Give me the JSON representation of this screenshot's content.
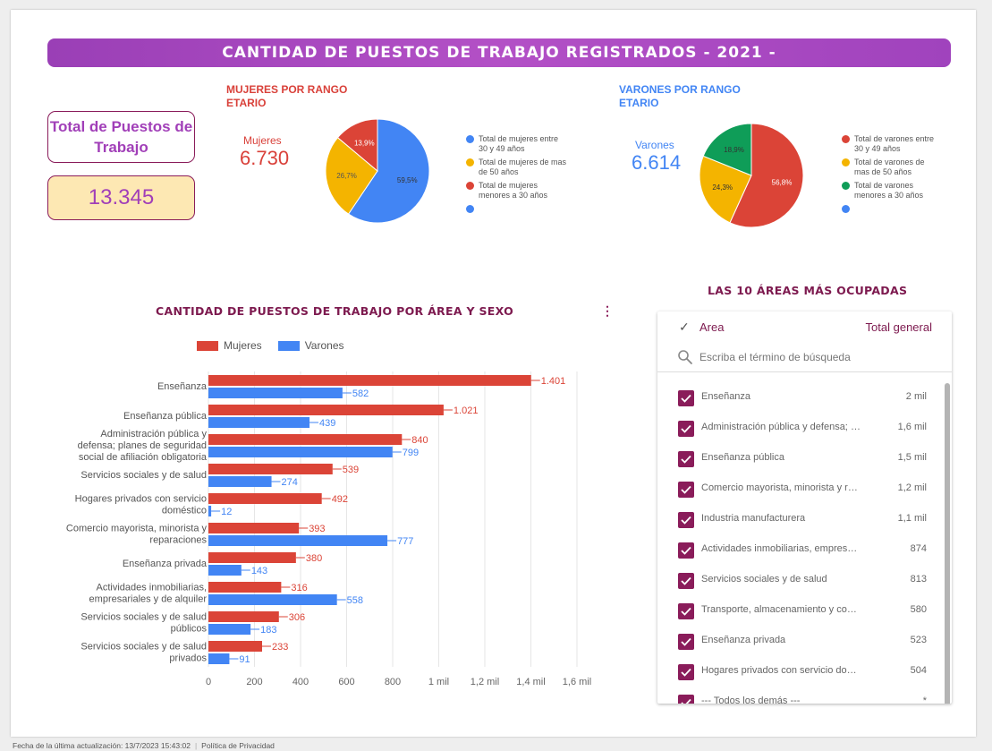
{
  "title": "CANTIDAD DE PUESTOS DE TRABAJO REGISTRADOS  - 2021 -",
  "total": {
    "label": "Total de Puestos de Trabajo",
    "value": "13.345"
  },
  "women": {
    "title": "MUJERES POR RANGO ETARIO",
    "scorecard_label": "Mujeres",
    "scorecard_value": "6.730",
    "legend": [
      "Total de mujeres entre 30 y 49 años",
      "Total de mujeres de mas de 50 años",
      "Total de mujeres menores a 30 años",
      ""
    ],
    "slice_labels": [
      "59,5%",
      "26,7%",
      "13,9%"
    ]
  },
  "men": {
    "title": "VARONES POR RANGO ETARIO",
    "scorecard_label": "Varones",
    "scorecard_value": "6.614",
    "legend": [
      "Total de varones entre 30 y 49 años",
      "Total de varones de mas de 50 años",
      "Total de varones menores a 30 años",
      ""
    ],
    "slice_labels": [
      "56,8%",
      "24,3%",
      "18,9%"
    ]
  },
  "colors": {
    "red": "#db4437",
    "blue": "#4285f4",
    "yellow": "#f4b400",
    "green": "#0f9d58",
    "purple": "#8a1c5a"
  },
  "bar_chart": {
    "title": "CANTIDAD DE PUESTOS DE TRABAJO POR ÁREA Y SEXO",
    "menu_icon": "kebab-menu-icon"
  },
  "top_areas": {
    "title": "LAS 10 ÁREAS MÁS OCUPADAS",
    "header_area": "Area",
    "header_total": "Total general",
    "search_placeholder": "Escriba el término de búsqueda",
    "rows": [
      {
        "label": "Enseñanza",
        "value": "2 mil"
      },
      {
        "label": "Administración pública y defensa; planes de seguridad social",
        "value": "1,6 mil"
      },
      {
        "label": "Enseñanza pública",
        "value": "1,5 mil"
      },
      {
        "label": "Comercio mayorista, minorista y reparaciones",
        "value": "1,2 mil"
      },
      {
        "label": "Industria manufacturera",
        "value": "1,1 mil"
      },
      {
        "label": "Actividades inmobiliarias, empresariales y de alquiler",
        "value": "874"
      },
      {
        "label": "Servicios sociales y de salud",
        "value": "813"
      },
      {
        "label": "Transporte, almacenamiento y comunicaciones",
        "value": "580"
      },
      {
        "label": "Enseñanza privada",
        "value": "523"
      },
      {
        "label": "Hogares privados con servicio doméstico",
        "value": "504"
      },
      {
        "label": "--- Todos los demás ---",
        "value": "*"
      }
    ]
  },
  "footer": {
    "updated": "Fecha de la última actualización: 13/7/2023 15:43:02",
    "privacy": "Política de Privacidad"
  },
  "chart_data": [
    {
      "type": "pie",
      "title": "MUJERES POR RANGO ETARIO",
      "labels": [
        "Total de mujeres entre 30 y 49 años",
        "Total de mujeres de mas de 50 años",
        "Total de mujeres menores a 30 años"
      ],
      "values": [
        59.5,
        26.7,
        13.9
      ],
      "colors": [
        "#4285f4",
        "#f4b400",
        "#db4437"
      ]
    },
    {
      "type": "pie",
      "title": "VARONES POR RANGO ETARIO",
      "labels": [
        "Total de varones entre 30 y 49 años",
        "Total de varones de mas de 50 años",
        "Total de varones menores a 30 años"
      ],
      "values": [
        56.8,
        24.3,
        18.9
      ],
      "colors": [
        "#db4437",
        "#f4b400",
        "#0f9d58"
      ]
    },
    {
      "type": "bar",
      "orientation": "horizontal",
      "title": "CANTIDAD DE PUESTOS DE TRABAJO POR ÁREA Y SEXO",
      "categories": [
        "Enseñanza",
        "Enseñanza pública",
        "Administración pública y defensa; planes de seguridad social de afiliación obligatoria",
        "Servicios sociales y de salud",
        "Hogares privados con servicio doméstico",
        "Comercio mayorista, minorista y reparaciones",
        "Enseñanza privada",
        "Actividades inmobiliarias, empresariales y de alquiler",
        "Servicios sociales y de salud públicos",
        "Servicios sociales y de salud privados"
      ],
      "category_lines": [
        [
          "Enseñanza"
        ],
        [
          "Enseñanza pública"
        ],
        [
          "Administración pública y",
          "defensa; planes de seguridad",
          "social de afiliación obligatoria"
        ],
        [
          "Servicios sociales y de salud"
        ],
        [
          "Hogares privados con servicio",
          "doméstico"
        ],
        [
          "Comercio mayorista, minorista y",
          "reparaciones"
        ],
        [
          "Enseñanza privada"
        ],
        [
          "Actividades inmobiliarias,",
          "empresariales y de alquiler"
        ],
        [
          "Servicios sociales y de salud",
          "públicos"
        ],
        [
          "Servicios sociales y de salud",
          "privados"
        ]
      ],
      "series": [
        {
          "name": "Mujeres",
          "color": "#db4437",
          "values": [
            1401,
            1021,
            840,
            539,
            492,
            393,
            380,
            316,
            306,
            233
          ],
          "labels": [
            "1.401",
            "1.021",
            "840",
            "539",
            "492",
            "393",
            "380",
            "316",
            "306",
            "233"
          ]
        },
        {
          "name": "Varones",
          "color": "#4285f4",
          "values": [
            582,
            439,
            799,
            274,
            12,
            777,
            143,
            558,
            183,
            91
          ],
          "labels": [
            "582",
            "439",
            "799",
            "274",
            "12",
            "777",
            "143",
            "558",
            "183",
            "91"
          ]
        }
      ],
      "xlim": [
        0,
        1600
      ],
      "xticks": [
        0,
        200,
        400,
        600,
        800,
        1000,
        1200,
        1400,
        1600
      ],
      "xtick_labels": [
        "0",
        "200",
        "400",
        "600",
        "800",
        "1 mil",
        "1,2 mil",
        "1,4 mil",
        "1,6 mil"
      ],
      "grid": true,
      "legend": "top-left"
    }
  ]
}
